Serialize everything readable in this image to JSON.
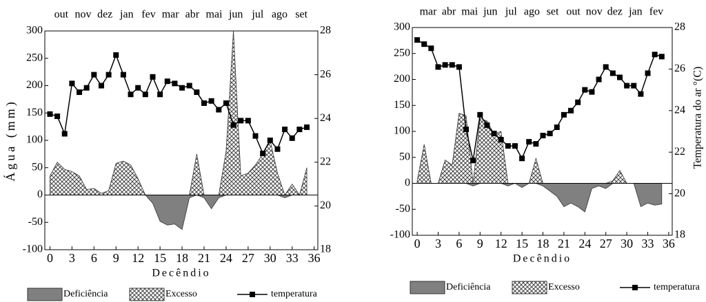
{
  "chart_data": [
    {
      "type": "combo",
      "top_labels": [
        "out",
        "nov",
        "dez",
        "jan",
        "fev",
        "mar",
        "abr",
        "mai",
        "jun",
        "jul",
        "ago",
        "set"
      ],
      "xlabel": "Decêndio",
      "ylabel": "Água (mm)",
      "x": [
        0,
        1,
        2,
        3,
        4,
        5,
        6,
        7,
        8,
        9,
        10,
        11,
        12,
        13,
        14,
        15,
        16,
        17,
        18,
        19,
        20,
        21,
        22,
        23,
        24,
        25,
        26,
        27,
        28,
        29,
        30,
        31,
        32,
        33,
        34,
        35
      ],
      "xlim": [
        -0.7,
        36.5
      ],
      "xticks": [
        0,
        3,
        6,
        9,
        12,
        15,
        18,
        21,
        24,
        27,
        30,
        33,
        36
      ],
      "ylim": [
        -100,
        300
      ],
      "yticks": [
        -100,
        -50,
        0,
        50,
        100,
        150,
        200,
        250,
        300
      ],
      "y2lim": [
        18,
        28
      ],
      "y2ticks": [
        18,
        20,
        22,
        24,
        26,
        28
      ],
      "series": [
        {
          "name": "Deficiência",
          "color": "#808080",
          "values": [
            0,
            0,
            0,
            0,
            0,
            0,
            0,
            0,
            0,
            0,
            0,
            0,
            0,
            0,
            -15,
            -48,
            -55,
            -53,
            -63,
            -5,
            0,
            -5,
            -25,
            -5,
            0,
            0,
            0,
            0,
            0,
            0,
            0,
            0,
            -5,
            0,
            0,
            0
          ]
        },
        {
          "name": "Excesso",
          "color": "#888888",
          "values": [
            35,
            60,
            47,
            43,
            35,
            10,
            12,
            3,
            8,
            58,
            62,
            55,
            30,
            0,
            0,
            0,
            0,
            0,
            0,
            0,
            75,
            0,
            0,
            0,
            80,
            300,
            35,
            40,
            55,
            75,
            100,
            40,
            0,
            20,
            0,
            50
          ]
        },
        {
          "name": "temperatura",
          "color": "#000000",
          "axis": "y2",
          "values": [
            24.2,
            24.1,
            23.3,
            25.6,
            25.2,
            25.4,
            26,
            25.5,
            26,
            26.9,
            26,
            25.1,
            25.4,
            25.1,
            25.9,
            25.1,
            25.7,
            25.6,
            25.4,
            25.5,
            25.2,
            24.7,
            24.8,
            24.4,
            24.7,
            23.7,
            23.9,
            23.9,
            23.2,
            22.4,
            23,
            22.6,
            23.5,
            23.1,
            23.5,
            23.6
          ]
        }
      ]
    },
    {
      "type": "combo",
      "top_labels": [
        "mar",
        "abr",
        "mai",
        "jun",
        "jul",
        "ago",
        "set",
        "out",
        "nov",
        "dez",
        "jan",
        "fev"
      ],
      "xlabel": "Decêndio",
      "y2label": "Temperatura do ar °(C)",
      "x": [
        0,
        1,
        2,
        3,
        4,
        5,
        6,
        7,
        8,
        9,
        10,
        11,
        12,
        13,
        14,
        15,
        16,
        17,
        18,
        19,
        20,
        21,
        22,
        23,
        24,
        25,
        26,
        27,
        28,
        29,
        30,
        31,
        32,
        33,
        34,
        35
      ],
      "xlim": [
        -0.7,
        36.5
      ],
      "xticks": [
        0,
        3,
        6,
        9,
        12,
        15,
        18,
        21,
        24,
        27,
        30,
        33,
        36
      ],
      "ylim": [
        -100,
        300
      ],
      "yticks": [
        -100,
        -50,
        0,
        50,
        100,
        150,
        200,
        250,
        300
      ],
      "y2lim": [
        18,
        28
      ],
      "y2ticks": [
        18,
        20,
        22,
        24,
        26,
        28
      ],
      "series": [
        {
          "name": "Deficiência",
          "color": "#808080",
          "values": [
            0,
            0,
            0,
            0,
            0,
            0,
            0,
            0,
            -5,
            0,
            0,
            0,
            0,
            -5,
            0,
            -8,
            0,
            0,
            -5,
            -15,
            -25,
            -45,
            -38,
            -45,
            -55,
            -10,
            -5,
            -10,
            0,
            0,
            0,
            0,
            -45,
            -38,
            -42,
            -40
          ]
        },
        {
          "name": "Excesso",
          "color": "#888888",
          "values": [
            5,
            75,
            0,
            0,
            45,
            35,
            135,
            130,
            0,
            125,
            120,
            95,
            100,
            0,
            0,
            0,
            0,
            48,
            0,
            0,
            0,
            0,
            0,
            0,
            0,
            0,
            0,
            0,
            5,
            25,
            0,
            0,
            0,
            0,
            0,
            0
          ]
        },
        {
          "name": "temperatura",
          "color": "#000000",
          "axis": "y2",
          "values": [
            27.4,
            27.2,
            27,
            26.1,
            26.2,
            26.2,
            26.1,
            23.1,
            21.6,
            23.8,
            23.3,
            22.9,
            22.6,
            22.3,
            22.3,
            21.7,
            22.5,
            22.4,
            22.8,
            22.9,
            23.2,
            23.8,
            24,
            24.4,
            25,
            24.9,
            25.5,
            26.1,
            25.8,
            25.6,
            25.2,
            25.2,
            24.8,
            25.8,
            26.7,
            26.6
          ]
        }
      ]
    }
  ]
}
